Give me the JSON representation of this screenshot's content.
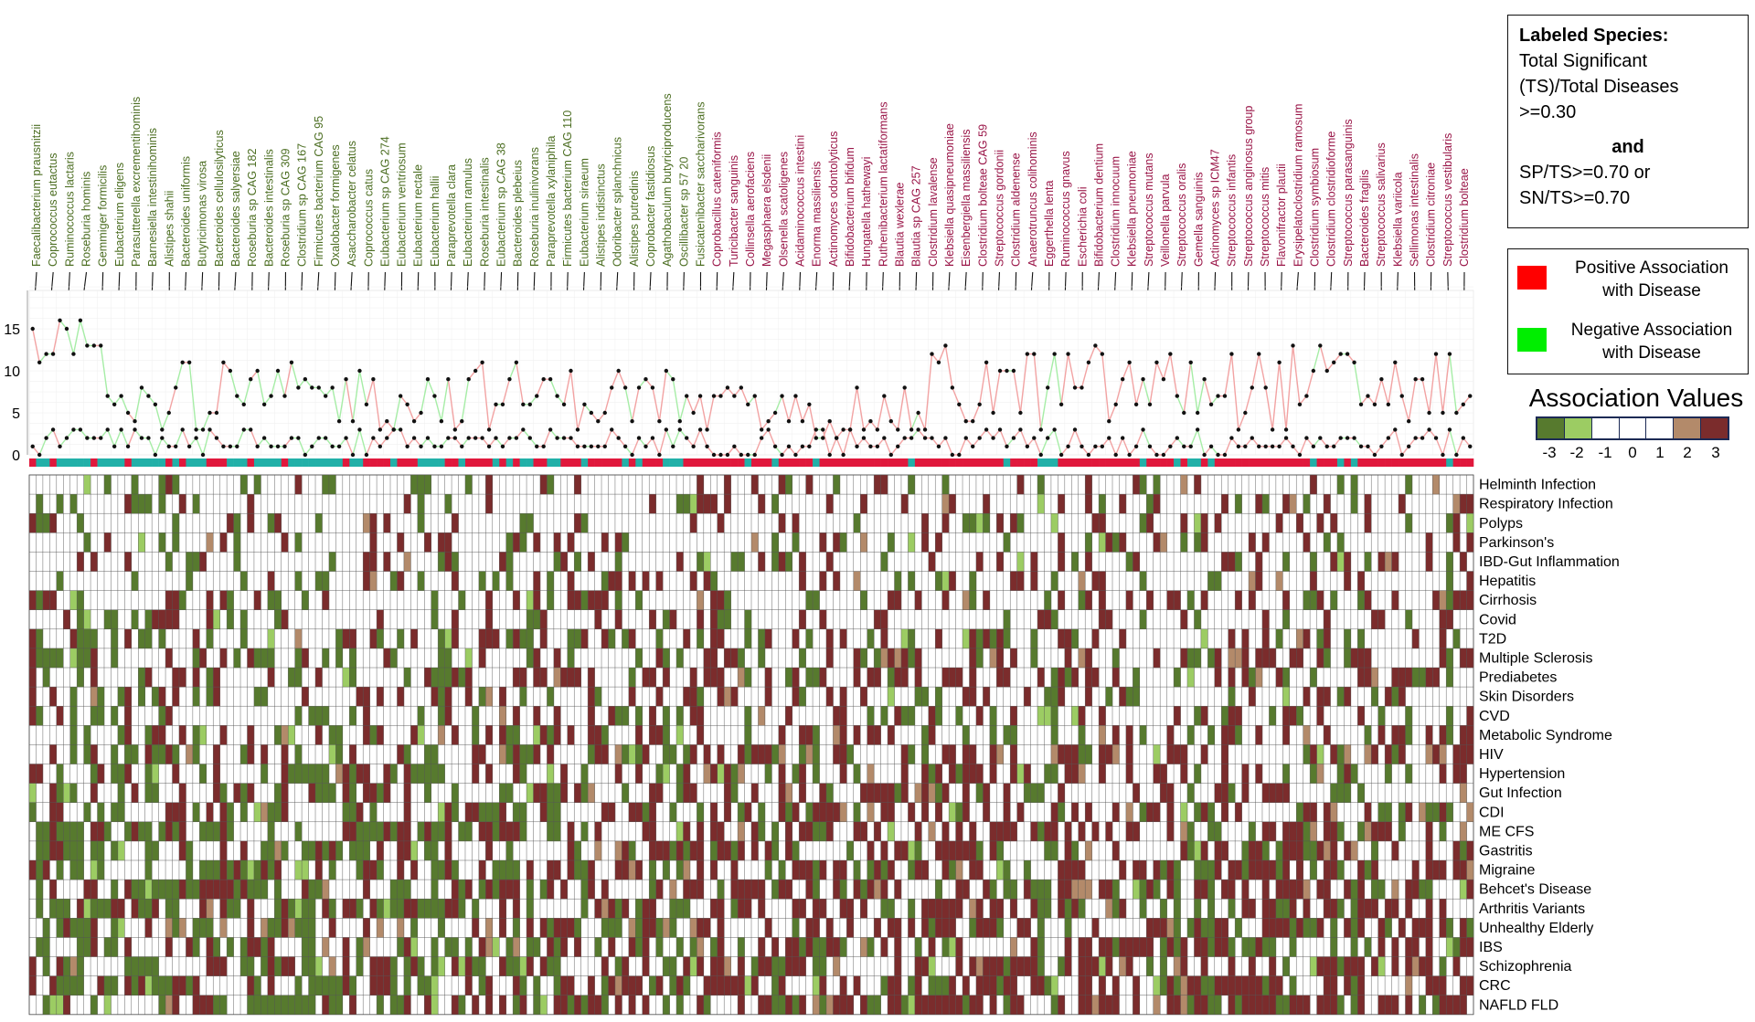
{
  "colors": {
    "pos_label": "#9a1648",
    "neg_label": "#4c6e22",
    "pos_line": "#f2a3a3",
    "neg_line": "#a6eda6",
    "strip_pos": "#e0183c",
    "strip_neg": "#22b0a8",
    "legend_pos": "#ff0000",
    "legend_neg": "#00ee00",
    "heat_minus3": "#577a2e",
    "heat_minus2": "#9ccc63",
    "heat_0": "#ffffff",
    "heat_2": "#b38a6a",
    "heat_3": "#7b2c2c"
  },
  "legend": {
    "labeled_title": "Labeled Species:",
    "labeled_lines": [
      "Total Significant",
      "(TS)/Total Diseases",
      ">=0.30"
    ],
    "and_word": "and",
    "criteria_lines": [
      "SP/TS>=0.70 or",
      "SN/TS>=0.70"
    ],
    "positive_label_1": "Positive Association",
    "positive_label_2": "with Disease",
    "negative_label_1": "Negative Association",
    "negative_label_2": "with Disease",
    "assoc_title": "Association Values",
    "assoc_ticks": [
      "-3",
      "-2",
      "-1",
      "0",
      "1",
      "2",
      "3"
    ]
  },
  "chart_data": {
    "type": "heatmap",
    "title": "",
    "line_yticks": [
      0,
      5,
      10,
      15
    ],
    "line_ylim": [
      0,
      20
    ],
    "n_species": 212,
    "value_scale": [
      -3,
      -2,
      -1,
      0,
      1,
      2,
      3
    ],
    "diseases": [
      "Helminth Infection",
      "Respiratory Infection",
      "Polyps",
      "Parkinson's",
      "IBD-Gut Inflammation",
      "Hepatitis",
      "Cirrhosis",
      "Covid",
      "T2D",
      "Multiple Sclerosis",
      "Prediabetes",
      "Skin Disorders",
      "CVD",
      "Metabolic Syndrome",
      "HIV",
      "Hypertension",
      "Gut Infection",
      "CDI",
      "ME CFS",
      "Gastritis",
      "Migraine",
      "Behcet's Disease",
      "Arthritis Variants",
      "Unhealthy Elderly",
      "IBS",
      "Schizophrenia",
      "CRC",
      "NAFLD FLD"
    ],
    "labeled_negative": [
      "Faecalibacterium prausnitzii",
      "Coprococcus eutactus",
      "Ruminococcus lactaris",
      "Roseburia hominis",
      "Gemmiger formicilis",
      "Eubacterium eligens",
      "Parasutterella excrementihominis",
      "Barnesiella intestinihominis",
      "Alistipes shahii",
      "Bacteroides uniformis",
      "Butyricimonas virosa",
      "Bacteroides cellulosilyticus",
      "Bacteroides salyersiae",
      "Roseburia sp CAG 182",
      "Bacteroides intestinalis",
      "Roseburia sp CAG 309",
      "Clostridium sp CAG 167",
      "Firmicutes bacterium CAG 95",
      "Oxalobacter formigenes",
      "Asaccharobacter celatus",
      "Coprococcus catus",
      "Eubacterium sp CAG 274",
      "Eubacterium ventriosum",
      "Eubacterium rectale",
      "Eubacterium hallii",
      "Paraprevotella clara",
      "Eubacterium ramulus",
      "Roseburia intestinalis",
      "Eubacterium sp CAG 38",
      "Bacteroides plebeius",
      "Roseburia inulinivorans",
      "Paraprevotella xylaniphila",
      "Firmicutes bacterium CAG 110",
      "Eubacterium siraeum",
      "Alistipes indistinctus",
      "Odoribacter splanchnicus",
      "Alistipes putredinis",
      "Coprobacter fastidiosus",
      "Agathobaculum butyriciproducens",
      "Oscillibacter sp 57 20",
      "Fusicatenibacter saccharivorans"
    ],
    "labeled_positive": [
      "Coprobacillus cateniformis",
      "Turicibacter sanguinis",
      "Collinsella aerofaciens",
      "Megasphaera elsdenii",
      "Olsenella scatoligenes",
      "Acidaminococcus intestini",
      "Enorma massiliensis",
      "Actinomyces odontolyticus",
      "Bifidobacterium bifidum",
      "Hungatella hathewayi",
      "Ruthenibacterium lactatiformans",
      "Blautia wexlerae",
      "Blautia sp CAG 257",
      "Clostridium lavalense",
      "Klebsiella quasipneumoniae",
      "Eisenbergiella massiliensis",
      "Clostridium bolteae CAG 59",
      "Streptococcus gordonii",
      "Clostridium aldenense",
      "Anaerotruncus colihominis",
      "Eggerthella lenta",
      "Ruminococcus gnavus",
      "Escherichia coli",
      "Bifidobacterium dentium",
      "Clostridium innocuum",
      "Klebsiella pneumoniae",
      "Streptococcus mutans",
      "Veillonella parvula",
      "Streptococcus oralis",
      "Gemella sanguinis",
      "Actinomyces sp ICM47",
      "Streptococcus infantis",
      "Streptococcus anginosus group",
      "Streptococcus mitis",
      "Flavonifractor plautii",
      "Erysipelatoclostridium ramosum",
      "Clostridium symbiosum",
      "Clostridium clostridioforme",
      "Streptococcus parasanguinis",
      "Bacteroides fragilis",
      "Streptococcus salivarius",
      "Klebsiella variicola",
      "Sellimonas intestinalis",
      "Clostridium citroniae",
      "Streptococcus vestibularis",
      "Clostridium bolteae"
    ]
  }
}
